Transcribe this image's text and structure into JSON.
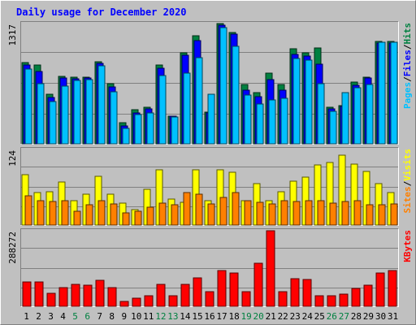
{
  "chart_data": {
    "type": "bar",
    "title": "Daily usage for December 2020",
    "x": [
      "1",
      "2",
      "3",
      "4",
      "5",
      "6",
      "7",
      "8",
      "9",
      "10",
      "11",
      "12",
      "13",
      "14",
      "15",
      "16",
      "17",
      "18",
      "19",
      "20",
      "21",
      "22",
      "23",
      "24",
      "25",
      "26",
      "27",
      "28",
      "29",
      "30",
      "31"
    ],
    "weekend_days": [
      "5",
      "6",
      "12",
      "13",
      "19",
      "20",
      "26",
      "27"
    ],
    "panels": [
      {
        "id": "hits",
        "ymax_label": "1317",
        "ymax": 1317,
        "legend": [
          "Pages",
          "/",
          "Files",
          "/",
          "Hits"
        ],
        "legend_colors": [
          "#00C0FF",
          "#000000",
          "#0000FF",
          "#000000",
          "#008040"
        ],
        "series": [
          {
            "name": "Hits",
            "color": "#008040",
            "values": [
              890,
              860,
              540,
              740,
              730,
              730,
              900,
              660,
              230,
              370,
              400,
              860,
              300,
              1000,
              1180,
              350,
              1317,
              1220,
              650,
              560,
              770,
              650,
              1040,
              1000,
              1050,
              400,
              420,
              680,
              730,
              1120,
              1120
            ]
          },
          {
            "name": "Files",
            "color": "#0000FF",
            "values": [
              860,
              790,
              510,
              720,
              710,
              720,
              880,
              620,
              200,
              340,
              380,
              830,
              300,
              970,
              1130,
              340,
              1300,
              1200,
              590,
              520,
              700,
              590,
              980,
              960,
              870,
              380,
              410,
              640,
              720,
              1100,
              1100
            ]
          },
          {
            "name": "Pages",
            "color": "#00C0FF",
            "values": [
              820,
              660,
              460,
              630,
              690,
              700,
              850,
              570,
              170,
              320,
              340,
              750,
              290,
              770,
              940,
              540,
              1270,
              1070,
              530,
              440,
              480,
              500,
              930,
              920,
              660,
              360,
              560,
              610,
              650,
              1110,
              1110
            ]
          }
        ]
      },
      {
        "id": "visits",
        "ymax_label": "124",
        "ymax": 124,
        "legend": [
          "Sites",
          "/",
          "Visits"
        ],
        "legend_colors": [
          "#FF8000",
          "#000000",
          "#FFFF00"
        ],
        "series": [
          {
            "name": "Visits",
            "color": "#FFFF00",
            "values": [
              82,
              53,
              55,
              70,
              40,
              50,
              80,
              50,
              36,
              25,
              58,
              90,
              43,
              37,
              90,
              40,
              90,
              87,
              40,
              68,
              40,
              55,
              72,
              78,
              98,
              102,
              115,
              100,
              88,
              68,
              53
            ]
          },
          {
            "name": "Sites",
            "color": "#FF8000",
            "values": [
              48,
              40,
              38,
              40,
              23,
              33,
              40,
              35,
              20,
              23,
              29,
              36,
              33,
              53,
              50,
              35,
              45,
              53,
              40,
              37,
              34,
              40,
              38,
              40,
              40,
              36,
              39,
              40,
              33,
              33,
              35
            ]
          }
        ]
      },
      {
        "id": "kbytes",
        "ymax_label": "288272",
        "ymax": 288272,
        "legend": [
          "KBytes"
        ],
        "legend_colors": [
          "#FF0000"
        ],
        "series": [
          {
            "name": "KBytes",
            "color": "#FF0000",
            "values": [
              93000,
              93000,
              50000,
              70000,
              84000,
              82000,
              98000,
              70000,
              19000,
              32000,
              40000,
              85000,
              39000,
              85000,
              108000,
              57000,
              135000,
              128000,
              57000,
              165000,
              288272,
              55000,
              104000,
              102000,
              40000,
              40000,
              48000,
              68000,
              80000,
              127000,
              135000
            ]
          }
        ]
      }
    ]
  }
}
